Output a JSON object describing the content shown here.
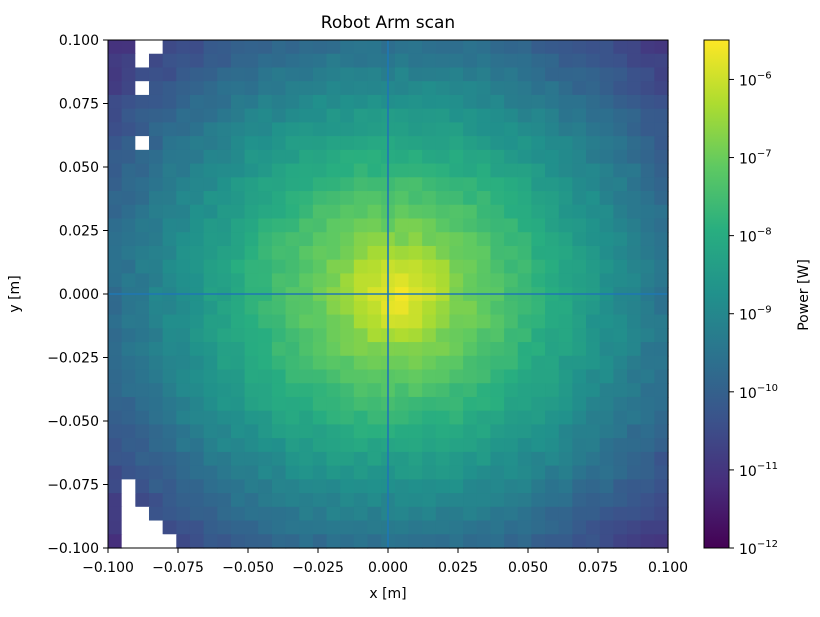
{
  "chart_data": {
    "type": "heatmap",
    "title": "Robot Arm scan",
    "xlabel": "x [m]",
    "ylabel": "y [m]",
    "xlim": [
      -0.1,
      0.1
    ],
    "ylim": [
      -0.1,
      0.1
    ],
    "x_ticks": [
      -0.1,
      -0.075,
      -0.05,
      -0.025,
      0.0,
      0.025,
      0.05,
      0.075,
      0.1
    ],
    "x_tick_labels": [
      "−0.100",
      "−0.075",
      "−0.050",
      "−0.025",
      "0.000",
      "0.025",
      "0.050",
      "0.075",
      "0.100"
    ],
    "y_ticks": [
      0.1,
      0.075,
      0.05,
      0.025,
      0.0,
      -0.025,
      -0.05,
      -0.075,
      -0.1
    ],
    "y_tick_labels": [
      "0.100",
      "0.075",
      "0.050",
      "0.025",
      "0.000",
      "−0.025",
      "−0.050",
      "−0.075",
      "−0.100"
    ],
    "grid_size": [
      41,
      37
    ],
    "peak_center": [
      0.003,
      0.0
    ],
    "peak_power_w": 3e-06,
    "crosshair": {
      "x": 0.0,
      "y": 0.0,
      "color": "#1f77b4"
    },
    "missing_regions": "white cells near top-left (around x=-0.095..-0.085, y=0.08..0.1) and bottom-left (around x=-0.1..-0.085, y=-0.1..-0.07)",
    "colorbar": {
      "label": "Power [W]",
      "scale": "log",
      "range": [
        1e-12,
        3.2e-06
      ],
      "tick_labels": [
        "10",
        "10",
        "10",
        "10",
        "10",
        "10",
        "10"
      ],
      "tick_exponents": [
        "−12",
        "−11",
        "−10",
        "−9",
        "−8",
        "−7",
        "−6"
      ],
      "colormap": "viridis"
    }
  }
}
